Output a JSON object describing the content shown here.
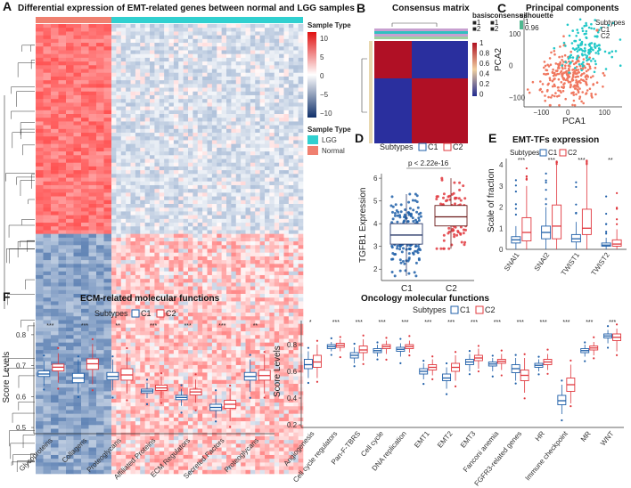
{
  "colors": {
    "normal": "#f08070",
    "lgg": "#30d0d0",
    "c1": "#1f5fa8",
    "c2": "#e0383e",
    "high": "#e01010",
    "low": "#10306a",
    "c1_pca": "#f07860",
    "c2_pca": "#22c8c8"
  },
  "panels": {
    "A": {
      "label": "A",
      "title": "Differential expression of EMT-related genes between normal and LGG samples",
      "legend_sample_type": "Sample Type",
      "legend_values": [
        "10",
        "5",
        "0",
        "−5",
        "−10"
      ],
      "legend_sample_type2": "Sample Type",
      "legend_lgg": "LGG",
      "legend_normal": "Normal"
    },
    "B": {
      "label": "B",
      "title": "Consensus matrix",
      "legend_basis": "basis",
      "legend_consensus": "consensus",
      "legend_silhouette": "silhouette",
      "basis_items": [
        "1",
        "2"
      ],
      "cons_items": [
        "1",
        "2"
      ],
      "sil_ticks": [
        "1",
        "0.96"
      ],
      "scale_ticks": [
        "1",
        "0.8",
        "0.6",
        "0.4",
        "0.2",
        "0"
      ]
    },
    "C": {
      "label": "C",
      "title": "Principal components",
      "xlabel": "PCA1",
      "ylabel": "PCA2",
      "legend_title": "Subtypes",
      "legend_items": [
        "C1",
        "C2"
      ],
      "xticks": [
        "−100",
        "0",
        "100"
      ],
      "yticks": [
        "100",
        "0",
        "−100"
      ]
    },
    "D": {
      "label": "D",
      "legend_title": "Subtypes",
      "legend_items": [
        "C1",
        "C2"
      ],
      "ylabel": "TGFB1 Expression",
      "pvalue": "p < 2.22e-16",
      "xticks": [
        "C1",
        "C2"
      ],
      "yticks": [
        "6",
        "5",
        "4",
        "3",
        "2"
      ]
    },
    "E": {
      "label": "E",
      "title": "EMT-TFs expression",
      "legend_title": "Subtypes",
      "legend_items": [
        "C1",
        "C2"
      ],
      "ylabel": "Scale of fraction",
      "yticks": [
        "4",
        "3",
        "2",
        "1",
        "0"
      ]
    },
    "F": {
      "label": "F",
      "title": "ECM-related molecular functions",
      "legend_title": "Subtypes",
      "legend_items": [
        "C1",
        "C2"
      ],
      "ylabel": "Score Levels",
      "yticks": [
        "0.8",
        "0.7",
        "0.6",
        "0.5"
      ]
    },
    "G": {
      "label": "G",
      "title": "Oncology molecular functions",
      "legend_title": "Subtypes",
      "legend_items": [
        "C1",
        "C2"
      ],
      "ylabel": "Score Levels",
      "yticks": [
        "0.8",
        "0.6",
        "0.4",
        "0.2"
      ]
    }
  },
  "chart_data": [
    {
      "panel": "C",
      "type": "scatter",
      "title": "Principal components",
      "xlabel": "PCA1",
      "ylabel": "PCA2",
      "xlim": [
        -150,
        150
      ],
      "ylim": [
        -130,
        150
      ],
      "series": [
        {
          "name": "C1",
          "center": [
            -10,
            -40
          ]
        },
        {
          "name": "C2",
          "center": [
            40,
            60
          ]
        }
      ]
    },
    {
      "panel": "D",
      "type": "box",
      "ylabel": "TGFB1 Expression",
      "categories": [
        "C1",
        "C2"
      ],
      "ylim": [
        1.5,
        6.2
      ],
      "stats": [
        {
          "name": "C1",
          "q1": 3.1,
          "median": 3.5,
          "q3": 4.0,
          "min": 1.7,
          "max": 5.3
        },
        {
          "name": "C2",
          "q1": 3.9,
          "median": 4.3,
          "q3": 4.8,
          "min": 2.9,
          "max": 6.0
        }
      ],
      "annotation": "p < 2.22e-16"
    },
    {
      "panel": "E",
      "type": "box",
      "title": "EMT-TFs expression",
      "ylabel": "Scale of fraction",
      "ylim": [
        0,
        4.3
      ],
      "categories": [
        "SNAI1",
        "SNAI2",
        "TWIST1",
        "TWIST2"
      ],
      "signif": [
        "***",
        "***",
        "***",
        "**"
      ],
      "series": [
        {
          "name": "C1",
          "stats": [
            [
              0.3,
              0.45,
              0.6,
              0,
              1.1
            ],
            [
              0.5,
              0.8,
              1.1,
              0,
              2.0
            ],
            [
              0.35,
              0.5,
              0.7,
              0,
              1.3
            ],
            [
              0.15,
              0.2,
              0.3,
              0,
              0.55
            ]
          ]
        },
        {
          "name": "C2",
          "stats": [
            [
              0.4,
              0.8,
              1.5,
              0,
              3.0
            ],
            [
              0.5,
              1.1,
              2.1,
              0,
              4.0
            ],
            [
              0.7,
              1.0,
              1.9,
              0,
              4.0
            ],
            [
              0.15,
              0.25,
              0.45,
              0,
              0.95
            ]
          ]
        }
      ]
    },
    {
      "panel": "F",
      "type": "box",
      "title": "ECM-related molecular functions",
      "ylabel": "Score Levels",
      "ylim": [
        0.48,
        0.84
      ],
      "categories": [
        "Glycoproteins",
        "Collagens",
        "Proteoglycans",
        "Affiliated Proteins",
        "ECM Regulators",
        "Secreted Factors",
        "Proteoglycans"
      ],
      "signif": [
        "***",
        "***",
        "**",
        "***",
        "***",
        "***",
        "**"
      ],
      "series": [
        {
          "name": "C1",
          "stats": [
            [
              0.665,
              0.673,
              0.683,
              0.635,
              0.715
            ],
            [
              0.645,
              0.66,
              0.675,
              0.61,
              0.72
            ],
            [
              0.655,
              0.665,
              0.678,
              0.62,
              0.72
            ],
            [
              0.612,
              0.618,
              0.624,
              0.595,
              0.645
            ],
            [
              0.59,
              0.597,
              0.604,
              0.57,
              0.625
            ],
            [
              0.555,
              0.565,
              0.575,
              0.53,
              0.605
            ],
            [
              0.653,
              0.665,
              0.678,
              0.615,
              0.72
            ]
          ]
        },
        {
          "name": "C2",
          "stats": [
            [
              0.683,
              0.695,
              0.705,
              0.645,
              0.74
            ],
            [
              0.688,
              0.706,
              0.722,
              0.64,
              0.77
            ],
            [
              0.653,
              0.67,
              0.69,
              0.61,
              0.74
            ],
            [
              0.62,
              0.628,
              0.637,
              0.595,
              0.665
            ],
            [
              0.605,
              0.615,
              0.624,
              0.58,
              0.655
            ],
            [
              0.562,
              0.575,
              0.588,
              0.52,
              0.625
            ],
            [
              0.653,
              0.668,
              0.685,
              0.61,
              0.735
            ]
          ]
        }
      ]
    },
    {
      "panel": "G",
      "type": "box",
      "title": "Oncology molecular functions",
      "ylabel": "Score Levels",
      "ylim": [
        0.18,
        0.98
      ],
      "categories": [
        "Angiogenesis",
        "Cell cycle regulators",
        "Pan-F-TBRS",
        "Cell cycle",
        "DNA replication",
        "EMT1",
        "EMT2",
        "EMT3",
        "Fanconi anemia",
        "FGFR3-related genes",
        "HR",
        "Immune checkpoint",
        "MR",
        "WNT"
      ],
      "signif": [
        "*",
        "***",
        "***",
        "***",
        "***",
        "***",
        "***",
        "***",
        "***",
        "***",
        "***",
        "***",
        "***",
        "***"
      ],
      "series": [
        {
          "name": "C1",
          "stats": [
            [
              0.62,
              0.65,
              0.69,
              0.55,
              0.75
            ],
            [
              0.77,
              0.785,
              0.8,
              0.75,
              0.82
            ],
            [
              0.7,
              0.72,
              0.74,
              0.66,
              0.78
            ],
            [
              0.74,
              0.755,
              0.77,
              0.71,
              0.8
            ],
            [
              0.75,
              0.765,
              0.78,
              0.71,
              0.81
            ],
            [
              0.58,
              0.6,
              0.62,
              0.54,
              0.66
            ],
            [
              0.53,
              0.55,
              0.58,
              0.47,
              0.63
            ],
            [
              0.65,
              0.67,
              0.69,
              0.6,
              0.73
            ],
            [
              0.64,
              0.655,
              0.67,
              0.6,
              0.7
            ],
            [
              0.59,
              0.62,
              0.65,
              0.53,
              0.7
            ],
            [
              0.63,
              0.645,
              0.66,
              0.6,
              0.69
            ],
            [
              0.35,
              0.38,
              0.42,
              0.28,
              0.5
            ],
            [
              0.74,
              0.755,
              0.77,
              0.71,
              0.8
            ],
            [
              0.85,
              0.865,
              0.88,
              0.81,
              0.91
            ]
          ]
        },
        {
          "name": "C2",
          "stats": [
            [
              0.63,
              0.67,
              0.72,
              0.55,
              0.8
            ],
            [
              0.78,
              0.795,
              0.81,
              0.75,
              0.84
            ],
            [
              0.74,
              0.76,
              0.79,
              0.68,
              0.84
            ],
            [
              0.77,
              0.785,
              0.8,
              0.73,
              0.83
            ],
            [
              0.77,
              0.785,
              0.8,
              0.74,
              0.83
            ],
            [
              0.61,
              0.63,
              0.65,
              0.57,
              0.69
            ],
            [
              0.6,
              0.63,
              0.66,
              0.53,
              0.72
            ],
            [
              0.68,
              0.7,
              0.72,
              0.62,
              0.77
            ],
            [
              0.66,
              0.675,
              0.69,
              0.61,
              0.73
            ],
            [
              0.53,
              0.57,
              0.61,
              0.44,
              0.7
            ],
            [
              0.65,
              0.67,
              0.69,
              0.61,
              0.73
            ],
            [
              0.45,
              0.5,
              0.55,
              0.36,
              0.65
            ],
            [
              0.76,
              0.775,
              0.79,
              0.72,
              0.82
            ],
            [
              0.83,
              0.855,
              0.88,
              0.75,
              0.92
            ]
          ]
        }
      ]
    }
  ]
}
